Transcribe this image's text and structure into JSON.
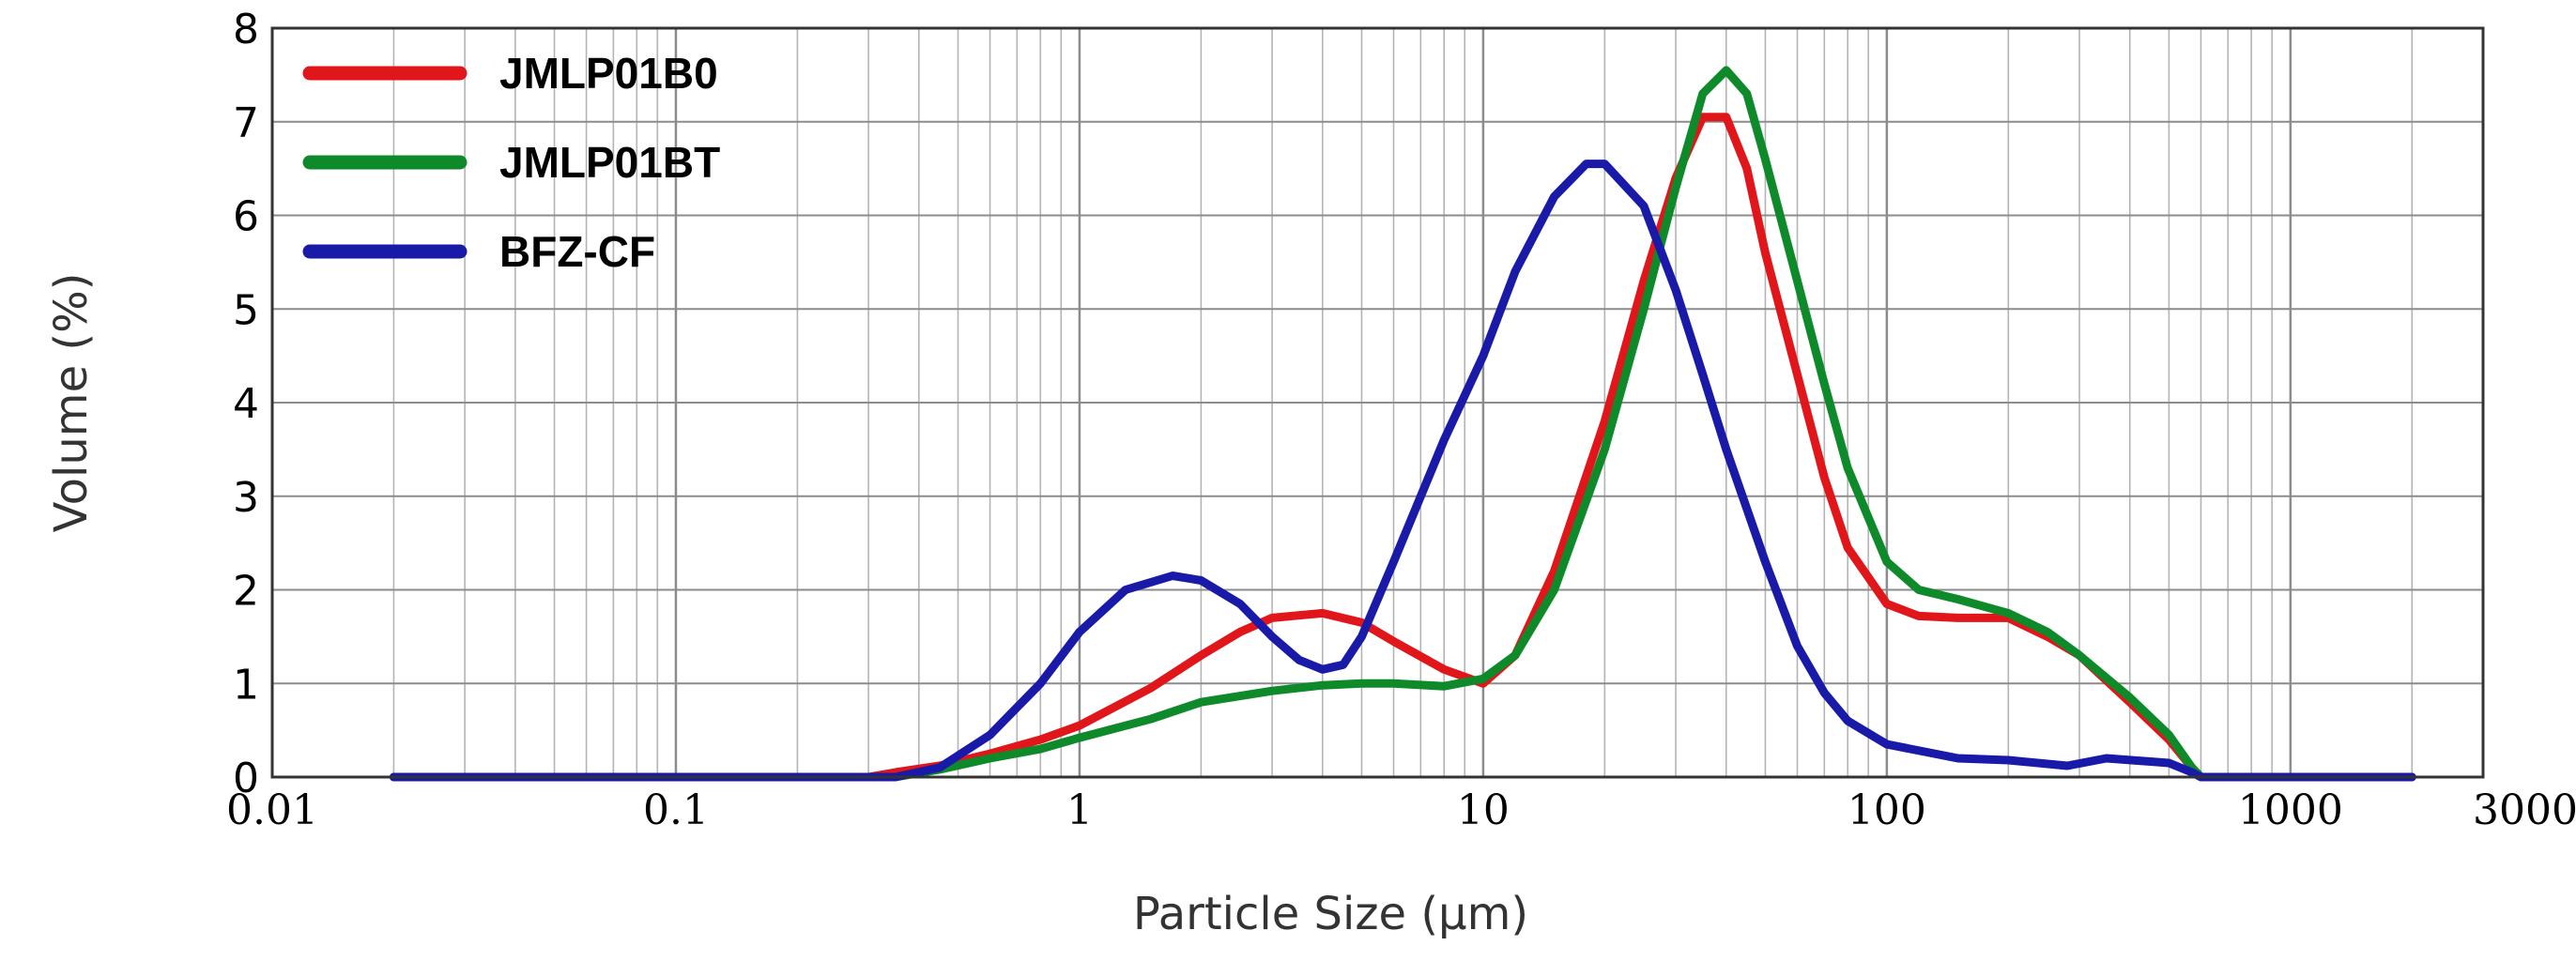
{
  "chart_data": {
    "type": "line",
    "x_scale": "log",
    "xlim": [
      0.01,
      3000
    ],
    "ylim": [
      0,
      8
    ],
    "grid": true,
    "legend_position": "top-left",
    "xlabel": "Particle Size (μm)",
    "ylabel": "Volume (%)",
    "x_ticks": [
      0.01,
      0.1,
      1,
      10,
      100,
      1000,
      3000
    ],
    "x_tick_labels": [
      "0.01",
      "0.1",
      "1",
      "10",
      "100",
      "1000",
      "3000"
    ],
    "y_ticks": [
      0,
      1,
      2,
      3,
      4,
      5,
      6,
      7,
      8
    ],
    "y_tick_labels": [
      "0",
      "1",
      "2",
      "3",
      "4",
      "5",
      "6",
      "7",
      "8"
    ],
    "series": [
      {
        "name": "JMLP01B0",
        "color": "#e0161b",
        "points": [
          [
            0.02,
            0
          ],
          [
            0.3,
            0
          ],
          [
            0.35,
            0.05
          ],
          [
            0.45,
            0.12
          ],
          [
            0.6,
            0.25
          ],
          [
            0.8,
            0.4
          ],
          [
            1,
            0.55
          ],
          [
            1.5,
            0.95
          ],
          [
            2,
            1.3
          ],
          [
            2.5,
            1.55
          ],
          [
            3,
            1.7
          ],
          [
            4,
            1.75
          ],
          [
            5,
            1.65
          ],
          [
            6,
            1.45
          ],
          [
            8,
            1.15
          ],
          [
            10,
            1.0
          ],
          [
            12,
            1.3
          ],
          [
            15,
            2.2
          ],
          [
            20,
            3.8
          ],
          [
            25,
            5.3
          ],
          [
            30,
            6.4
          ],
          [
            35,
            7.05
          ],
          [
            40,
            7.05
          ],
          [
            45,
            6.5
          ],
          [
            50,
            5.6
          ],
          [
            60,
            4.3
          ],
          [
            70,
            3.2
          ],
          [
            80,
            2.45
          ],
          [
            100,
            1.85
          ],
          [
            120,
            1.72
          ],
          [
            150,
            1.7
          ],
          [
            200,
            1.7
          ],
          [
            250,
            1.5
          ],
          [
            300,
            1.3
          ],
          [
            400,
            0.8
          ],
          [
            500,
            0.4
          ],
          [
            570,
            0.1
          ],
          [
            600,
            0
          ],
          [
            2000,
            0
          ]
        ]
      },
      {
        "name": "JMLP01BT",
        "color": "#0f8a2a",
        "points": [
          [
            0.02,
            0
          ],
          [
            0.35,
            0
          ],
          [
            0.45,
            0.08
          ],
          [
            0.6,
            0.2
          ],
          [
            0.8,
            0.3
          ],
          [
            1,
            0.42
          ],
          [
            1.5,
            0.62
          ],
          [
            2,
            0.8
          ],
          [
            3,
            0.92
          ],
          [
            4,
            0.98
          ],
          [
            5,
            1.0
          ],
          [
            6,
            1.0
          ],
          [
            8,
            0.97
          ],
          [
            10,
            1.05
          ],
          [
            12,
            1.3
          ],
          [
            15,
            2.0
          ],
          [
            20,
            3.5
          ],
          [
            25,
            5.0
          ],
          [
            30,
            6.3
          ],
          [
            35,
            7.3
          ],
          [
            40,
            7.55
          ],
          [
            45,
            7.3
          ],
          [
            50,
            6.6
          ],
          [
            60,
            5.3
          ],
          [
            70,
            4.2
          ],
          [
            80,
            3.3
          ],
          [
            100,
            2.3
          ],
          [
            120,
            2.0
          ],
          [
            150,
            1.9
          ],
          [
            200,
            1.75
          ],
          [
            250,
            1.55
          ],
          [
            300,
            1.3
          ],
          [
            400,
            0.85
          ],
          [
            500,
            0.45
          ],
          [
            570,
            0.1
          ],
          [
            600,
            0
          ],
          [
            2000,
            0
          ]
        ]
      },
      {
        "name": "BFZ-CF",
        "color": "#1a1aa8",
        "points": [
          [
            0.02,
            0
          ],
          [
            0.35,
            0
          ],
          [
            0.45,
            0.1
          ],
          [
            0.6,
            0.45
          ],
          [
            0.8,
            1.0
          ],
          [
            1,
            1.55
          ],
          [
            1.3,
            2.0
          ],
          [
            1.7,
            2.15
          ],
          [
            2,
            2.1
          ],
          [
            2.5,
            1.85
          ],
          [
            3,
            1.5
          ],
          [
            3.5,
            1.25
          ],
          [
            4,
            1.15
          ],
          [
            4.5,
            1.2
          ],
          [
            5,
            1.5
          ],
          [
            6,
            2.3
          ],
          [
            8,
            3.6
          ],
          [
            10,
            4.5
          ],
          [
            12,
            5.4
          ],
          [
            15,
            6.2
          ],
          [
            18,
            6.55
          ],
          [
            20,
            6.55
          ],
          [
            25,
            6.1
          ],
          [
            30,
            5.2
          ],
          [
            35,
            4.3
          ],
          [
            40,
            3.5
          ],
          [
            50,
            2.3
          ],
          [
            60,
            1.4
          ],
          [
            70,
            0.9
          ],
          [
            80,
            0.6
          ],
          [
            100,
            0.35
          ],
          [
            150,
            0.2
          ],
          [
            200,
            0.18
          ],
          [
            280,
            0.12
          ],
          [
            350,
            0.2
          ],
          [
            500,
            0.15
          ],
          [
            570,
            0.05
          ],
          [
            600,
            0
          ],
          [
            2000,
            0
          ]
        ]
      }
    ]
  }
}
